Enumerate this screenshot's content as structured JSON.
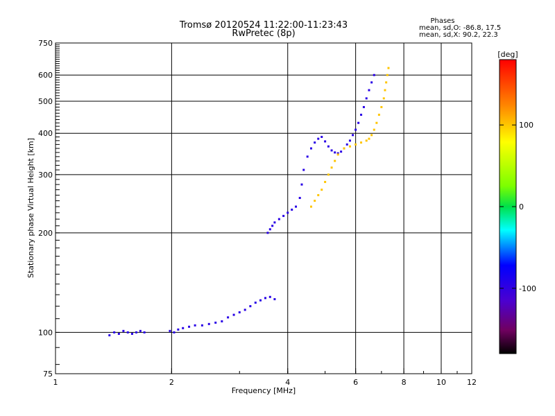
{
  "header": {
    "title": "Tromsø 20120524 11:22:00-11:23:43",
    "subtitle": "RwPretec (8p)",
    "phases_title": "Phases",
    "phases_line1": "mean, sd,O: -86.8, 17.5",
    "phases_line2": "mean, sd,X: 90.2, 22.3"
  },
  "chart_data": {
    "type": "scatter",
    "xlabel": "Frequency [MHz]",
    "ylabel": "Stationary phase Virtual Height [km]",
    "xscale": "log",
    "yscale": "log",
    "xlim": [
      1,
      12
    ],
    "ylim": [
      75,
      750
    ],
    "xticks": [
      {
        "v": 1,
        "label": "1"
      },
      {
        "v": 2,
        "label": "2"
      },
      {
        "v": 4,
        "label": "4"
      },
      {
        "v": 6,
        "label": "6"
      },
      {
        "v": 8,
        "label": "8"
      },
      {
        "v": 10,
        "label": "10"
      },
      {
        "v": 12,
        "label": "12"
      }
    ],
    "yticks": [
      {
        "v": 75,
        "label": "75"
      },
      {
        "v": 100,
        "label": "100"
      },
      {
        "v": 200,
        "label": "200"
      },
      {
        "v": 300,
        "label": "300"
      },
      {
        "v": 400,
        "label": "400"
      },
      {
        "v": 500,
        "label": "500"
      },
      {
        "v": 600,
        "label": "600"
      },
      {
        "v": 750,
        "label": "750"
      }
    ],
    "grid": true,
    "colorbar": {
      "label": "[deg]",
      "range": [
        -180,
        180
      ],
      "ticks": [
        {
          "v": 100,
          "label": "100"
        },
        {
          "v": 0,
          "label": "0"
        },
        {
          "v": -100,
          "label": "-100"
        }
      ]
    },
    "series": [
      {
        "color_phase": -95,
        "points": [
          [
            1.38,
            98
          ],
          [
            1.42,
            100
          ],
          [
            1.46,
            99
          ],
          [
            1.5,
            101
          ],
          [
            1.54,
            100
          ],
          [
            1.58,
            99
          ],
          [
            1.62,
            100
          ],
          [
            1.66,
            101
          ],
          [
            1.7,
            100
          ],
          [
            1.98,
            101
          ],
          [
            2.03,
            100
          ],
          [
            2.08,
            102
          ],
          [
            2.14,
            103
          ],
          [
            2.22,
            104
          ],
          [
            2.3,
            105
          ],
          [
            2.4,
            105
          ],
          [
            2.5,
            106
          ],
          [
            2.6,
            107
          ],
          [
            2.7,
            108
          ],
          [
            2.8,
            111
          ],
          [
            2.9,
            113
          ],
          [
            3.0,
            115
          ],
          [
            3.1,
            117
          ],
          [
            3.2,
            120
          ],
          [
            3.3,
            123
          ],
          [
            3.4,
            125
          ],
          [
            3.5,
            127
          ],
          [
            3.6,
            128
          ],
          [
            3.7,
            126
          ],
          [
            3.55,
            200
          ],
          [
            3.6,
            205
          ],
          [
            3.65,
            210
          ],
          [
            3.7,
            215
          ],
          [
            3.8,
            220
          ],
          [
            3.9,
            225
          ],
          [
            4.0,
            230
          ],
          [
            4.1,
            235
          ],
          [
            4.2,
            240
          ],
          [
            4.3,
            255
          ],
          [
            4.35,
            280
          ],
          [
            4.4,
            310
          ],
          [
            4.5,
            340
          ],
          [
            4.6,
            360
          ],
          [
            4.7,
            375
          ],
          [
            4.8,
            385
          ],
          [
            4.9,
            390
          ],
          [
            5.0,
            378
          ],
          [
            5.1,
            365
          ],
          [
            5.2,
            355
          ],
          [
            5.3,
            350
          ],
          [
            5.4,
            348
          ],
          [
            5.5,
            352
          ],
          [
            5.6,
            360
          ],
          [
            5.7,
            370
          ],
          [
            5.8,
            380
          ],
          [
            5.9,
            395
          ],
          [
            6.0,
            410
          ],
          [
            6.1,
            430
          ],
          [
            6.2,
            455
          ],
          [
            6.3,
            480
          ],
          [
            6.4,
            510
          ],
          [
            6.5,
            540
          ],
          [
            6.6,
            570
          ],
          [
            6.7,
            600
          ]
        ]
      },
      {
        "color_phase": 100,
        "points": [
          [
            4.6,
            240
          ],
          [
            4.7,
            250
          ],
          [
            4.8,
            260
          ],
          [
            4.9,
            270
          ],
          [
            5.0,
            285
          ],
          [
            5.1,
            300
          ],
          [
            5.2,
            315
          ],
          [
            5.3,
            330
          ],
          [
            5.4,
            345
          ],
          [
            5.6,
            360
          ],
          [
            5.8,
            365
          ],
          [
            6.0,
            370
          ],
          [
            6.2,
            375
          ],
          [
            6.4,
            380
          ],
          [
            6.5,
            385
          ],
          [
            6.6,
            395
          ],
          [
            6.7,
            410
          ],
          [
            6.8,
            430
          ],
          [
            6.9,
            455
          ],
          [
            7.0,
            480
          ],
          [
            7.1,
            510
          ],
          [
            7.15,
            540
          ],
          [
            7.2,
            570
          ],
          [
            7.25,
            600
          ],
          [
            7.3,
            630
          ]
        ]
      }
    ]
  }
}
